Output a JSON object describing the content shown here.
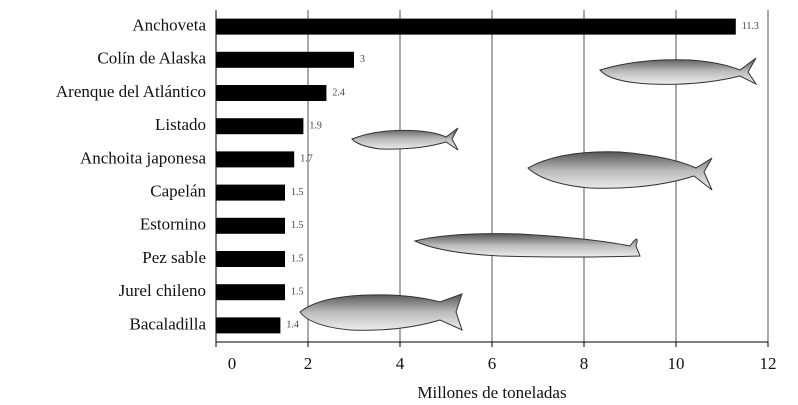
{
  "chart_data": {
    "type": "bar",
    "orientation": "horizontal",
    "categories": [
      "Anchoveta",
      "Colín de Alaska",
      "Arenque del Atlántico",
      "Listado",
      "Anchoita japonesa",
      "Capelán",
      "Estornino",
      "Pez sable",
      "Jurel chileno",
      "Bacaladilla"
    ],
    "values": [
      11.3,
      3,
      2.4,
      1.9,
      1.7,
      1.5,
      1.5,
      1.5,
      1.5,
      1.4
    ],
    "color": "#000000",
    "xlabel": "Millones de toneladas",
    "xlim": [
      0,
      12
    ],
    "xticks": [
      0,
      2,
      4,
      6,
      8,
      10,
      12
    ],
    "grid": true
  }
}
